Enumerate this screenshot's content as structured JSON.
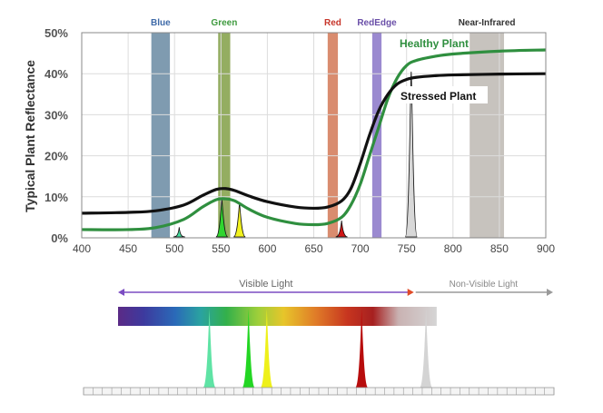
{
  "chart_data": {
    "type": "line",
    "ylabel": "Typical Plant Reflectance",
    "xlim": [
      400,
      900
    ],
    "ylim": [
      0,
      50
    ],
    "x_ticks": [
      400,
      450,
      500,
      550,
      600,
      650,
      700,
      750,
      800,
      850,
      900
    ],
    "y_ticks": [
      {
        "value": 0,
        "label": "0%"
      },
      {
        "value": 10,
        "label": "10%"
      },
      {
        "value": 20,
        "label": "20%"
      },
      {
        "value": 30,
        "label": "30%"
      },
      {
        "value": 40,
        "label": "40%"
      },
      {
        "value": 50,
        "label": "50%"
      }
    ],
    "grid": true,
    "bands": [
      {
        "name": "Blue",
        "from": 475,
        "to": 495,
        "color": "#7f9bb0",
        "label_color": "#3e6aa8"
      },
      {
        "name": "Green",
        "from": 547,
        "to": 560,
        "color": "#94ad61",
        "label_color": "#3e9a3e"
      },
      {
        "name": "Red",
        "from": 665,
        "to": 676,
        "color": "#d98c6f",
        "label_color": "#c7352a"
      },
      {
        "name": "RedEdge",
        "from": 713,
        "to": 723,
        "color": "#9b8ad0",
        "label_color": "#6a4fa8"
      },
      {
        "name": "Near-Infrared",
        "from": 818,
        "to": 855,
        "color": "#c7c3be",
        "label_color": "#333333"
      }
    ],
    "series": [
      {
        "name": "Healthy Plant",
        "color": "#2f8f3f",
        "x": [
          400,
          450,
          480,
          510,
          530,
          545,
          555,
          565,
          580,
          600,
          630,
          650,
          665,
          680,
          690,
          700,
          710,
          720,
          730,
          740,
          750,
          760,
          780,
          800,
          850,
          900
        ],
        "y": [
          2,
          2,
          2.5,
          4.5,
          7.5,
          9.3,
          9.5,
          9,
          7,
          5,
          3.5,
          3.2,
          3.5,
          5,
          8,
          13,
          20,
          27,
          34,
          39,
          42,
          43.2,
          44.2,
          44.8,
          45.5,
          45.8
        ]
      },
      {
        "name": "Stressed Plant",
        "color": "#111111",
        "x": [
          400,
          450,
          480,
          510,
          530,
          545,
          555,
          565,
          580,
          600,
          630,
          650,
          665,
          680,
          690,
          700,
          710,
          720,
          730,
          740,
          750,
          760,
          780,
          800,
          850,
          900
        ],
        "y": [
          6,
          6.2,
          6.6,
          8,
          10.3,
          11.8,
          12,
          11.5,
          10.2,
          8.8,
          7.5,
          7.2,
          7.5,
          9,
          12,
          18,
          25,
          31,
          35,
          37.5,
          38.6,
          39.1,
          39.5,
          39.7,
          39.9,
          40
        ]
      }
    ],
    "peaks": [
      {
        "center": 505,
        "height": 2.6,
        "color": "#45e0a0"
      },
      {
        "center": 551,
        "height": 9.4,
        "color": "#2fd62f"
      },
      {
        "center": 570,
        "height": 8.6,
        "color": "#f2f21e"
      },
      {
        "center": 680,
        "height": 4.2,
        "color": "#d01414"
      },
      {
        "center": 755,
        "height": 40.5,
        "color": "#d8d8d8"
      }
    ]
  },
  "spectrum": {
    "visible_label": "Visible Light",
    "nonvisible_label": "Non-Visible Light",
    "visible_range": [
      400,
      740
    ],
    "nonvisible_range": [
      740,
      900
    ],
    "bar_range": [
      400,
      760
    ],
    "visible_arrow_color": "#7b4cc2",
    "nonvisible_arrow_color": "#9a9a9a",
    "peaks": [
      {
        "center": 505,
        "color": "#5fe3a5"
      },
      {
        "center": 550,
        "color": "#23d623"
      },
      {
        "center": 571,
        "color": "#eef01a"
      },
      {
        "center": 680,
        "color": "#b80d0d"
      },
      {
        "center": 754,
        "color": "#d4d4d4"
      }
    ]
  }
}
